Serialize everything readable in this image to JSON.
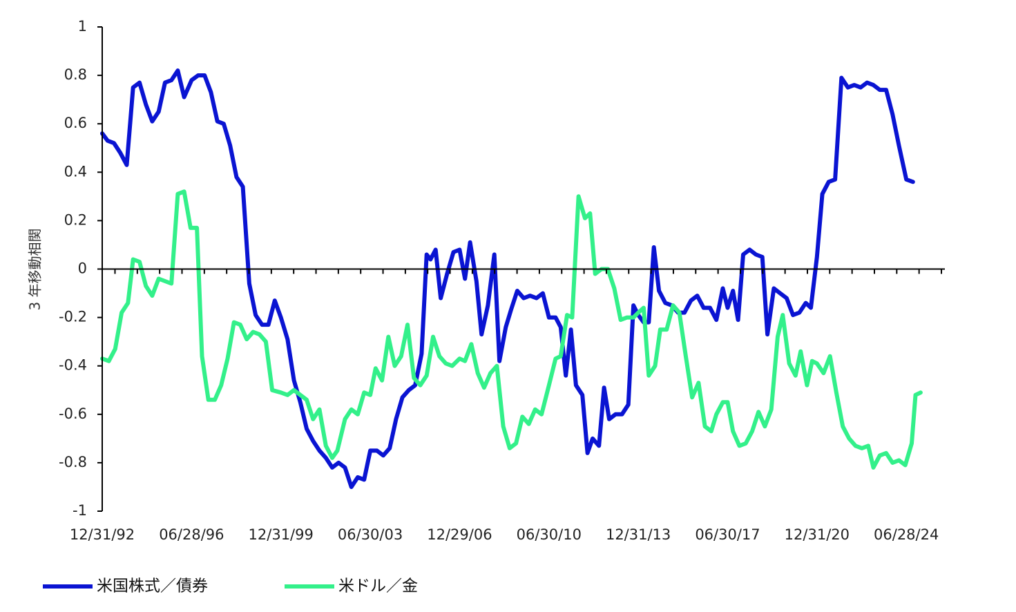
{
  "chart_data": {
    "type": "line",
    "title": "",
    "xlabel": "",
    "ylabel": "3 年移動相関",
    "ylim": [
      -1,
      1
    ],
    "yticks": [
      1,
      0.8,
      0.6,
      0.4,
      0.2,
      0,
      -0.2,
      -0.4,
      -0.6,
      -0.8,
      -1
    ],
    "ytick_labels": [
      "1",
      "0.8",
      "0.6",
      "0.4",
      "0.2",
      "0",
      "-0.2",
      "-0.4",
      "-0.6",
      "-0.8",
      "-1"
    ],
    "x_range": [
      1992.99,
      2026.0
    ],
    "xtick_labels": [
      "12/31/92",
      "06/28/96",
      "12/31/99",
      "06/30/03",
      "12/29/06",
      "06/30/10",
      "12/31/13",
      "06/30/17",
      "12/31/20",
      "06/28/24"
    ],
    "xtick_positions": [
      1992.99,
      1996.49,
      1999.99,
      2003.49,
      2006.99,
      2010.49,
      2013.99,
      2017.49,
      2020.99,
      2024.49
    ],
    "legend_position": "bottom-left",
    "series": [
      {
        "name": "米国株式／債券",
        "color": "#0a14d2",
        "points": [
          [
            1992.99,
            0.56
          ],
          [
            1993.2,
            0.53
          ],
          [
            1993.45,
            0.52
          ],
          [
            1993.7,
            0.48
          ],
          [
            1993.95,
            0.43
          ],
          [
            1994.2,
            0.75
          ],
          [
            1994.45,
            0.77
          ],
          [
            1994.7,
            0.68
          ],
          [
            1994.95,
            0.61
          ],
          [
            1995.2,
            0.65
          ],
          [
            1995.45,
            0.77
          ],
          [
            1995.7,
            0.78
          ],
          [
            1995.95,
            0.82
          ],
          [
            1996.2,
            0.71
          ],
          [
            1996.49,
            0.78
          ],
          [
            1996.75,
            0.8
          ],
          [
            1997.0,
            0.8
          ],
          [
            1997.25,
            0.73
          ],
          [
            1997.5,
            0.61
          ],
          [
            1997.75,
            0.6
          ],
          [
            1998.0,
            0.51
          ],
          [
            1998.25,
            0.38
          ],
          [
            1998.5,
            0.34
          ],
          [
            1998.75,
            -0.06
          ],
          [
            1999.0,
            -0.19
          ],
          [
            1999.25,
            -0.23
          ],
          [
            1999.5,
            -0.23
          ],
          [
            1999.75,
            -0.13
          ],
          [
            1999.99,
            -0.2
          ],
          [
            2000.25,
            -0.29
          ],
          [
            2000.5,
            -0.46
          ],
          [
            2000.75,
            -0.55
          ],
          [
            2001.0,
            -0.66
          ],
          [
            2001.25,
            -0.71
          ],
          [
            2001.5,
            -0.75
          ],
          [
            2001.75,
            -0.78
          ],
          [
            2002.0,
            -0.82
          ],
          [
            2002.25,
            -0.8
          ],
          [
            2002.5,
            -0.82
          ],
          [
            2002.75,
            -0.9
          ],
          [
            2003.0,
            -0.86
          ],
          [
            2003.25,
            -0.87
          ],
          [
            2003.49,
            -0.75
          ],
          [
            2003.75,
            -0.75
          ],
          [
            2004.0,
            -0.77
          ],
          [
            2004.25,
            -0.74
          ],
          [
            2004.5,
            -0.62
          ],
          [
            2004.75,
            -0.53
          ],
          [
            2005.0,
            -0.5
          ],
          [
            2005.25,
            -0.48
          ],
          [
            2005.5,
            -0.35
          ],
          [
            2005.7,
            0.06
          ],
          [
            2005.85,
            0.04
          ],
          [
            2006.05,
            0.08
          ],
          [
            2006.25,
            -0.12
          ],
          [
            2006.5,
            -0.02
          ],
          [
            2006.75,
            0.07
          ],
          [
            2006.99,
            0.08
          ],
          [
            2007.2,
            -0.04
          ],
          [
            2007.4,
            0.11
          ],
          [
            2007.65,
            -0.05
          ],
          [
            2007.85,
            -0.27
          ],
          [
            2008.1,
            -0.15
          ],
          [
            2008.35,
            0.06
          ],
          [
            2008.55,
            -0.38
          ],
          [
            2008.8,
            -0.24
          ],
          [
            2009.0,
            -0.17
          ],
          [
            2009.25,
            -0.09
          ],
          [
            2009.5,
            -0.12
          ],
          [
            2009.75,
            -0.11
          ],
          [
            2010.0,
            -0.12
          ],
          [
            2010.25,
            -0.1
          ],
          [
            2010.49,
            -0.2
          ],
          [
            2010.75,
            -0.2
          ],
          [
            2010.95,
            -0.24
          ],
          [
            2011.15,
            -0.44
          ],
          [
            2011.35,
            -0.25
          ],
          [
            2011.55,
            -0.48
          ],
          [
            2011.8,
            -0.52
          ],
          [
            2012.0,
            -0.76
          ],
          [
            2012.2,
            -0.7
          ],
          [
            2012.45,
            -0.73
          ],
          [
            2012.65,
            -0.49
          ],
          [
            2012.85,
            -0.62
          ],
          [
            2013.1,
            -0.6
          ],
          [
            2013.35,
            -0.6
          ],
          [
            2013.6,
            -0.56
          ],
          [
            2013.8,
            -0.15
          ],
          [
            2013.99,
            -0.19
          ],
          [
            2014.2,
            -0.22
          ],
          [
            2014.4,
            -0.22
          ],
          [
            2014.6,
            0.09
          ],
          [
            2014.8,
            -0.09
          ],
          [
            2015.05,
            -0.14
          ],
          [
            2015.3,
            -0.15
          ],
          [
            2015.55,
            -0.18
          ],
          [
            2015.8,
            -0.18
          ],
          [
            2016.05,
            -0.13
          ],
          [
            2016.3,
            -0.11
          ],
          [
            2016.55,
            -0.16
          ],
          [
            2016.8,
            -0.16
          ],
          [
            2017.05,
            -0.21
          ],
          [
            2017.3,
            -0.08
          ],
          [
            2017.49,
            -0.16
          ],
          [
            2017.7,
            -0.09
          ],
          [
            2017.9,
            -0.21
          ],
          [
            2018.1,
            0.06
          ],
          [
            2018.35,
            0.08
          ],
          [
            2018.6,
            0.06
          ],
          [
            2018.85,
            0.05
          ],
          [
            2019.05,
            -0.27
          ],
          [
            2019.3,
            -0.08
          ],
          [
            2019.55,
            -0.1
          ],
          [
            2019.8,
            -0.12
          ],
          [
            2020.05,
            -0.19
          ],
          [
            2020.3,
            -0.18
          ],
          [
            2020.55,
            -0.14
          ],
          [
            2020.75,
            -0.16
          ],
          [
            2020.99,
            0.05
          ],
          [
            2021.2,
            0.31
          ],
          [
            2021.45,
            0.36
          ],
          [
            2021.7,
            0.37
          ],
          [
            2021.95,
            0.79
          ],
          [
            2022.2,
            0.75
          ],
          [
            2022.45,
            0.76
          ],
          [
            2022.7,
            0.75
          ],
          [
            2022.95,
            0.77
          ],
          [
            2023.2,
            0.76
          ],
          [
            2023.45,
            0.74
          ],
          [
            2023.7,
            0.74
          ],
          [
            2023.95,
            0.64
          ],
          [
            2024.2,
            0.51
          ],
          [
            2024.49,
            0.37
          ],
          [
            2024.75,
            0.36
          ]
        ]
      },
      {
        "name": "米ドル／金",
        "color": "#33f08a",
        "points": [
          [
            1992.99,
            -0.37
          ],
          [
            1993.25,
            -0.38
          ],
          [
            1993.5,
            -0.33
          ],
          [
            1993.75,
            -0.18
          ],
          [
            1994.0,
            -0.14
          ],
          [
            1994.2,
            0.04
          ],
          [
            1994.45,
            0.03
          ],
          [
            1994.7,
            -0.07
          ],
          [
            1994.95,
            -0.11
          ],
          [
            1995.2,
            -0.04
          ],
          [
            1995.45,
            -0.05
          ],
          [
            1995.7,
            -0.06
          ],
          [
            1995.95,
            0.31
          ],
          [
            1996.2,
            0.32
          ],
          [
            1996.45,
            0.17
          ],
          [
            1996.7,
            0.17
          ],
          [
            1996.9,
            -0.36
          ],
          [
            1997.15,
            -0.54
          ],
          [
            1997.4,
            -0.54
          ],
          [
            1997.65,
            -0.48
          ],
          [
            1997.9,
            -0.37
          ],
          [
            1998.15,
            -0.22
          ],
          [
            1998.4,
            -0.23
          ],
          [
            1998.65,
            -0.29
          ],
          [
            1998.9,
            -0.26
          ],
          [
            1999.15,
            -0.27
          ],
          [
            1999.4,
            -0.3
          ],
          [
            1999.65,
            -0.5
          ],
          [
            1999.99,
            -0.51
          ],
          [
            2000.25,
            -0.52
          ],
          [
            2000.5,
            -0.5
          ],
          [
            2000.75,
            -0.52
          ],
          [
            2001.0,
            -0.54
          ],
          [
            2001.25,
            -0.62
          ],
          [
            2001.5,
            -0.58
          ],
          [
            2001.75,
            -0.73
          ],
          [
            2002.0,
            -0.78
          ],
          [
            2002.2,
            -0.75
          ],
          [
            2002.5,
            -0.62
          ],
          [
            2002.75,
            -0.58
          ],
          [
            2003.0,
            -0.6
          ],
          [
            2003.25,
            -0.51
          ],
          [
            2003.49,
            -0.52
          ],
          [
            2003.7,
            -0.41
          ],
          [
            2003.95,
            -0.46
          ],
          [
            2004.2,
            -0.28
          ],
          [
            2004.45,
            -0.4
          ],
          [
            2004.7,
            -0.36
          ],
          [
            2004.95,
            -0.23
          ],
          [
            2005.2,
            -0.45
          ],
          [
            2005.45,
            -0.48
          ],
          [
            2005.7,
            -0.44
          ],
          [
            2005.95,
            -0.28
          ],
          [
            2006.2,
            -0.36
          ],
          [
            2006.45,
            -0.39
          ],
          [
            2006.7,
            -0.4
          ],
          [
            2006.99,
            -0.37
          ],
          [
            2007.2,
            -0.38
          ],
          [
            2007.45,
            -0.31
          ],
          [
            2007.7,
            -0.43
          ],
          [
            2007.95,
            -0.49
          ],
          [
            2008.2,
            -0.43
          ],
          [
            2008.45,
            -0.4
          ],
          [
            2008.7,
            -0.65
          ],
          [
            2008.95,
            -0.74
          ],
          [
            2009.2,
            -0.72
          ],
          [
            2009.45,
            -0.61
          ],
          [
            2009.7,
            -0.64
          ],
          [
            2009.95,
            -0.58
          ],
          [
            2010.2,
            -0.6
          ],
          [
            2010.49,
            -0.48
          ],
          [
            2010.75,
            -0.37
          ],
          [
            2010.95,
            -0.36
          ],
          [
            2011.2,
            -0.19
          ],
          [
            2011.4,
            -0.2
          ],
          [
            2011.65,
            0.3
          ],
          [
            2011.9,
            0.21
          ],
          [
            2012.1,
            0.23
          ],
          [
            2012.3,
            -0.02
          ],
          [
            2012.55,
            0.0
          ],
          [
            2012.8,
            0.0
          ],
          [
            2013.05,
            -0.08
          ],
          [
            2013.3,
            -0.21
          ],
          [
            2013.55,
            -0.2
          ],
          [
            2013.8,
            -0.2
          ],
          [
            2013.99,
            -0.18
          ],
          [
            2014.2,
            -0.16
          ],
          [
            2014.4,
            -0.44
          ],
          [
            2014.65,
            -0.4
          ],
          [
            2014.85,
            -0.25
          ],
          [
            2015.1,
            -0.25
          ],
          [
            2015.35,
            -0.15
          ],
          [
            2015.6,
            -0.18
          ],
          [
            2015.85,
            -0.36
          ],
          [
            2016.1,
            -0.53
          ],
          [
            2016.35,
            -0.47
          ],
          [
            2016.6,
            -0.65
          ],
          [
            2016.85,
            -0.67
          ],
          [
            2017.05,
            -0.6
          ],
          [
            2017.3,
            -0.55
          ],
          [
            2017.49,
            -0.55
          ],
          [
            2017.7,
            -0.67
          ],
          [
            2017.95,
            -0.73
          ],
          [
            2018.2,
            -0.72
          ],
          [
            2018.45,
            -0.67
          ],
          [
            2018.7,
            -0.59
          ],
          [
            2018.95,
            -0.65
          ],
          [
            2019.2,
            -0.58
          ],
          [
            2019.45,
            -0.28
          ],
          [
            2019.65,
            -0.19
          ],
          [
            2019.9,
            -0.39
          ],
          [
            2020.15,
            -0.44
          ],
          [
            2020.35,
            -0.34
          ],
          [
            2020.6,
            -0.48
          ],
          [
            2020.8,
            -0.38
          ],
          [
            2020.99,
            -0.39
          ],
          [
            2021.25,
            -0.43
          ],
          [
            2021.5,
            -0.36
          ],
          [
            2021.75,
            -0.51
          ],
          [
            2022.0,
            -0.65
          ],
          [
            2022.25,
            -0.7
          ],
          [
            2022.5,
            -0.73
          ],
          [
            2022.75,
            -0.74
          ],
          [
            2023.0,
            -0.73
          ],
          [
            2023.2,
            -0.82
          ],
          [
            2023.45,
            -0.77
          ],
          [
            2023.7,
            -0.76
          ],
          [
            2023.95,
            -0.8
          ],
          [
            2024.2,
            -0.79
          ],
          [
            2024.45,
            -0.81
          ],
          [
            2024.7,
            -0.72
          ],
          [
            2024.85,
            -0.52
          ],
          [
            2025.05,
            -0.51
          ]
        ]
      }
    ]
  }
}
